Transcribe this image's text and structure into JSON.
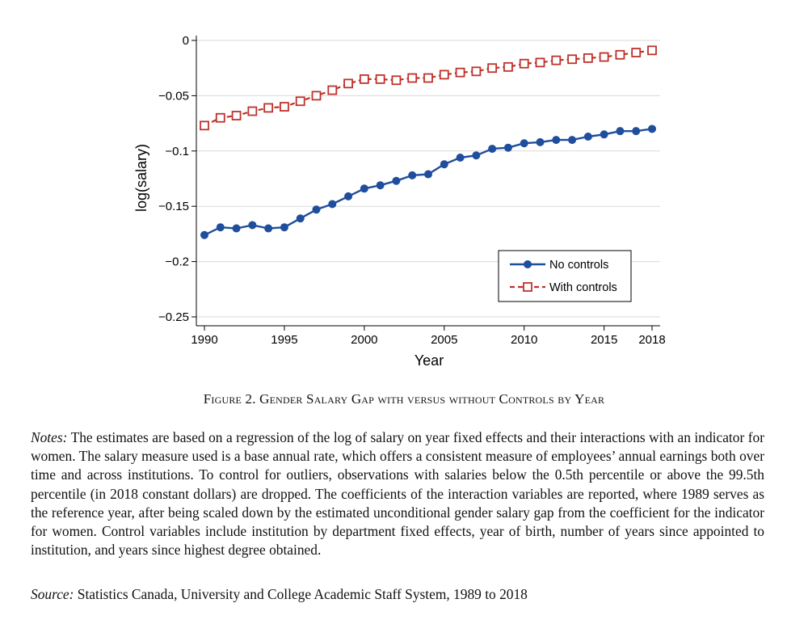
{
  "chart_data": {
    "type": "line",
    "xlabel": "Year",
    "ylabel": "log(salary)",
    "xlim": [
      1990,
      2018
    ],
    "ylim": [
      -0.25,
      0
    ],
    "x_ticks": [
      1990,
      1995,
      2000,
      2005,
      2010,
      2015,
      2018
    ],
    "y_ticks": [
      0,
      -0.05,
      -0.1,
      -0.15,
      -0.2,
      -0.25
    ],
    "y_tick_labels": [
      "0",
      "−0.05",
      "−0.1",
      "−0.15",
      "−0.2",
      "−0.25"
    ],
    "grid": "horizontal",
    "legend_position": "bottom-right",
    "x": [
      1990,
      1991,
      1992,
      1993,
      1994,
      1995,
      1996,
      1997,
      1998,
      1999,
      2000,
      2001,
      2002,
      2003,
      2004,
      2005,
      2006,
      2007,
      2008,
      2009,
      2010,
      2011,
      2012,
      2013,
      2014,
      2015,
      2016,
      2017,
      2018
    ],
    "series": [
      {
        "name": "No controls",
        "color": "#1f4e9c",
        "marker": "filled-circle",
        "line_style": "solid",
        "values": [
          -0.176,
          -0.169,
          -0.17,
          -0.167,
          -0.17,
          -0.169,
          -0.161,
          -0.153,
          -0.148,
          -0.141,
          -0.134,
          -0.131,
          -0.127,
          -0.122,
          -0.121,
          -0.112,
          -0.106,
          -0.104,
          -0.098,
          -0.097,
          -0.093,
          -0.092,
          -0.09,
          -0.09,
          -0.087,
          -0.085,
          -0.082,
          -0.082,
          -0.08
        ]
      },
      {
        "name": "With controls",
        "color": "#c0312b",
        "marker": "hollow-square",
        "line_style": "dashed",
        "values": [
          -0.077,
          -0.07,
          -0.068,
          -0.064,
          -0.061,
          -0.06,
          -0.055,
          -0.05,
          -0.045,
          -0.039,
          -0.035,
          -0.035,
          -0.036,
          -0.034,
          -0.034,
          -0.031,
          -0.029,
          -0.028,
          -0.025,
          -0.024,
          -0.021,
          -0.02,
          -0.018,
          -0.017,
          -0.016,
          -0.015,
          -0.013,
          -0.011,
          -0.009
        ]
      }
    ]
  },
  "caption": "Figure 2. Gender Salary Gap with versus without Controls by Year",
  "notes": {
    "lead": "Notes:",
    "text": " The estimates are based on a regression of the log of salary on year fixed effects and their interactions with an indicator for women. The salary measure used is a base annual rate, which offers a consistent measure of employees’ annual earnings both over time and across institutions. To control for outliers, observations with salaries below the 0.5th percentile or above the 99.5th percentile (in 2018 constant dollars) are dropped. The coefficients of the interaction variables are reported, where 1989 serves as the reference year, after being scaled down by the estimated unconditional gender salary gap from the coefficient for the indicator for women. Control variables include institution by department fixed effects, year of birth, number of years since appointed to institution, and years since highest degree obtained."
  },
  "source": {
    "lead": "Source:",
    "text": " Statistics Canada, University and College Academic Staff System, 1989 to 2018"
  }
}
